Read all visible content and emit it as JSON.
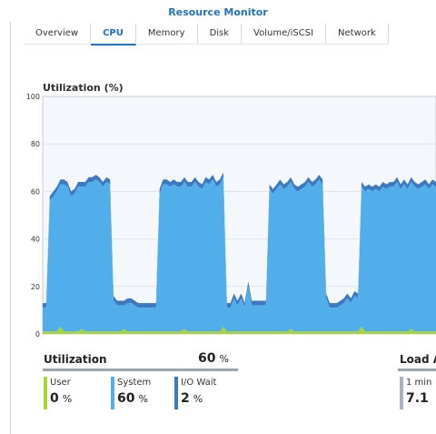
{
  "window": {
    "title": "Resource Monitor"
  },
  "tabs": [
    {
      "label": "Overview",
      "active": false
    },
    {
      "label": "CPU",
      "active": true
    },
    {
      "label": "Memory",
      "active": false
    },
    {
      "label": "Disk",
      "active": false
    },
    {
      "label": "Volume/iSCSI",
      "active": false
    },
    {
      "label": "Network",
      "active": false
    }
  ],
  "chart_data": {
    "type": "area",
    "title": "Utilization (%)",
    "ylim": [
      0,
      100
    ],
    "yticks": [
      "100",
      "80",
      "60",
      "40",
      "20",
      "0"
    ],
    "grid": true,
    "stacked": true,
    "colors": {
      "user": "#a8d436",
      "system": "#52aeea",
      "io_wait": "#3b7ac0"
    },
    "series": [
      {
        "name": "User",
        "values": [
          1,
          1,
          1,
          1,
          1,
          3,
          1,
          1,
          1,
          1,
          1,
          2,
          1,
          1,
          1,
          1,
          1,
          1,
          1,
          1,
          1,
          1,
          1,
          2,
          1,
          1,
          1,
          1,
          1,
          1,
          1,
          1,
          1,
          1,
          1,
          1,
          1,
          1,
          1,
          1,
          2,
          1,
          1,
          1,
          1,
          1,
          1,
          1,
          1,
          1,
          1,
          3,
          1,
          1,
          1,
          1,
          1,
          1,
          1,
          1,
          1,
          1,
          1,
          1,
          1,
          1,
          1,
          1,
          1,
          1,
          2,
          1,
          1,
          1,
          1,
          1,
          1,
          1,
          1,
          1,
          1,
          1,
          1,
          1,
          1,
          1,
          1,
          1,
          1,
          1,
          3,
          1,
          1,
          1,
          1,
          1,
          1,
          1,
          1,
          1,
          1,
          1,
          1,
          1,
          2,
          1,
          1,
          1,
          1,
          1,
          1,
          1
        ]
      },
      {
        "name": "System",
        "values": [
          10,
          10,
          55,
          57,
          59,
          60,
          62,
          61,
          57,
          58,
          61,
          60,
          61,
          63,
          63,
          64,
          63,
          61,
          63,
          62,
          13,
          11,
          11,
          10,
          12,
          12,
          11,
          10,
          10,
          10,
          10,
          10,
          10,
          58,
          62,
          62,
          61,
          62,
          61,
          61,
          62,
          61,
          61,
          63,
          61,
          60,
          63,
          62,
          64,
          61,
          62,
          63,
          10,
          10,
          14,
          11,
          14,
          10,
          19,
          11,
          11,
          11,
          11,
          11,
          60,
          58,
          60,
          62,
          60,
          61,
          62,
          60,
          59,
          60,
          61,
          63,
          61,
          62,
          64,
          62,
          14,
          10,
          10,
          10,
          11,
          12,
          14,
          12,
          15,
          14,
          59,
          59,
          60,
          59,
          60,
          59,
          61,
          60,
          61,
          61,
          63,
          60,
          62,
          60,
          62,
          61,
          60,
          61,
          62,
          60,
          62,
          61
        ]
      },
      {
        "name": "I/O Wait",
        "values": [
          2,
          2,
          2,
          2,
          2,
          2,
          2,
          2,
          2,
          2,
          2,
          2,
          2,
          2,
          2,
          2,
          2,
          2,
          2,
          2,
          2,
          2,
          2,
          2,
          2,
          2,
          2,
          2,
          2,
          2,
          2,
          2,
          2,
          2,
          2,
          2,
          2,
          2,
          2,
          2,
          2,
          2,
          2,
          2,
          2,
          2,
          2,
          2,
          2,
          2,
          2,
          2,
          2,
          2,
          2,
          2,
          2,
          2,
          2,
          2,
          2,
          2,
          2,
          2,
          2,
          2,
          2,
          2,
          2,
          2,
          2,
          2,
          2,
          2,
          2,
          2,
          2,
          2,
          2,
          2,
          2,
          2,
          2,
          2,
          2,
          2,
          2,
          2,
          2,
          2,
          2,
          2,
          2,
          2,
          2,
          2,
          2,
          2,
          2,
          2,
          2,
          2,
          2,
          2,
          2,
          2,
          2,
          2,
          2,
          2,
          2,
          2
        ]
      }
    ]
  },
  "utilization": {
    "title": "Utilization",
    "total_value": "60",
    "total_unit": "%",
    "metrics": [
      {
        "label": "User",
        "value": "0",
        "unit": "%",
        "color": "#a8d436"
      },
      {
        "label": "System",
        "value": "60",
        "unit": "%",
        "color": "#52aeea"
      },
      {
        "label": "I/O Wait",
        "value": "2",
        "unit": "%",
        "color": "#3b7ac0"
      }
    ]
  },
  "load_average": {
    "title": "Load A",
    "metrics": [
      {
        "label": "1 min",
        "value": "7.1",
        "color": "#aab3bd"
      }
    ]
  }
}
